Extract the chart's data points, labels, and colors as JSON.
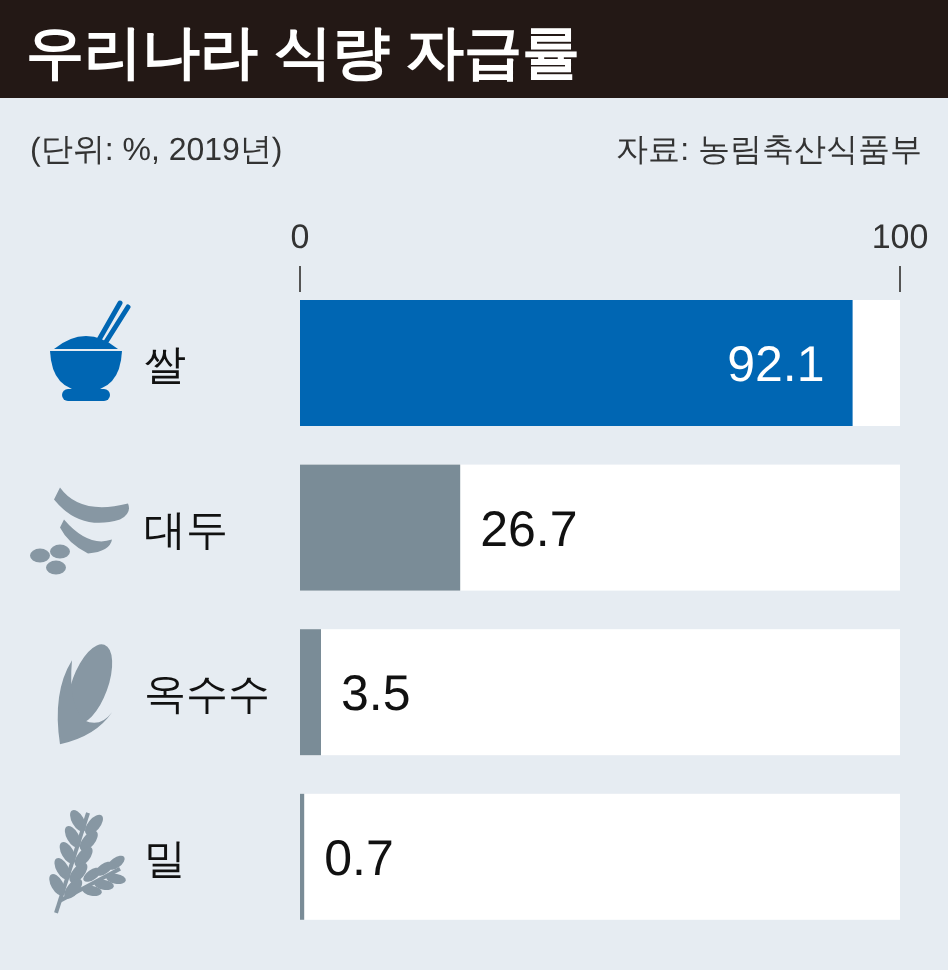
{
  "chart_data": {
    "type": "bar",
    "orientation": "horizontal",
    "title": "우리나라 식량 자급률",
    "subtitle": "(단위: %, 2019년)",
    "annotations": [
      "자료: 농림축산식품부"
    ],
    "categories": [
      "쌀",
      "대두",
      "옥수수",
      "밀"
    ],
    "values": [
      92.1,
      26.7,
      3.5,
      0.7
    ],
    "colors": [
      "#0066b3",
      "#7a8c97",
      "#7a8c97",
      "#7a8c97"
    ],
    "xlim": [
      0,
      100
    ],
    "xticks": [
      0,
      100
    ],
    "data_labels": true
  }
}
